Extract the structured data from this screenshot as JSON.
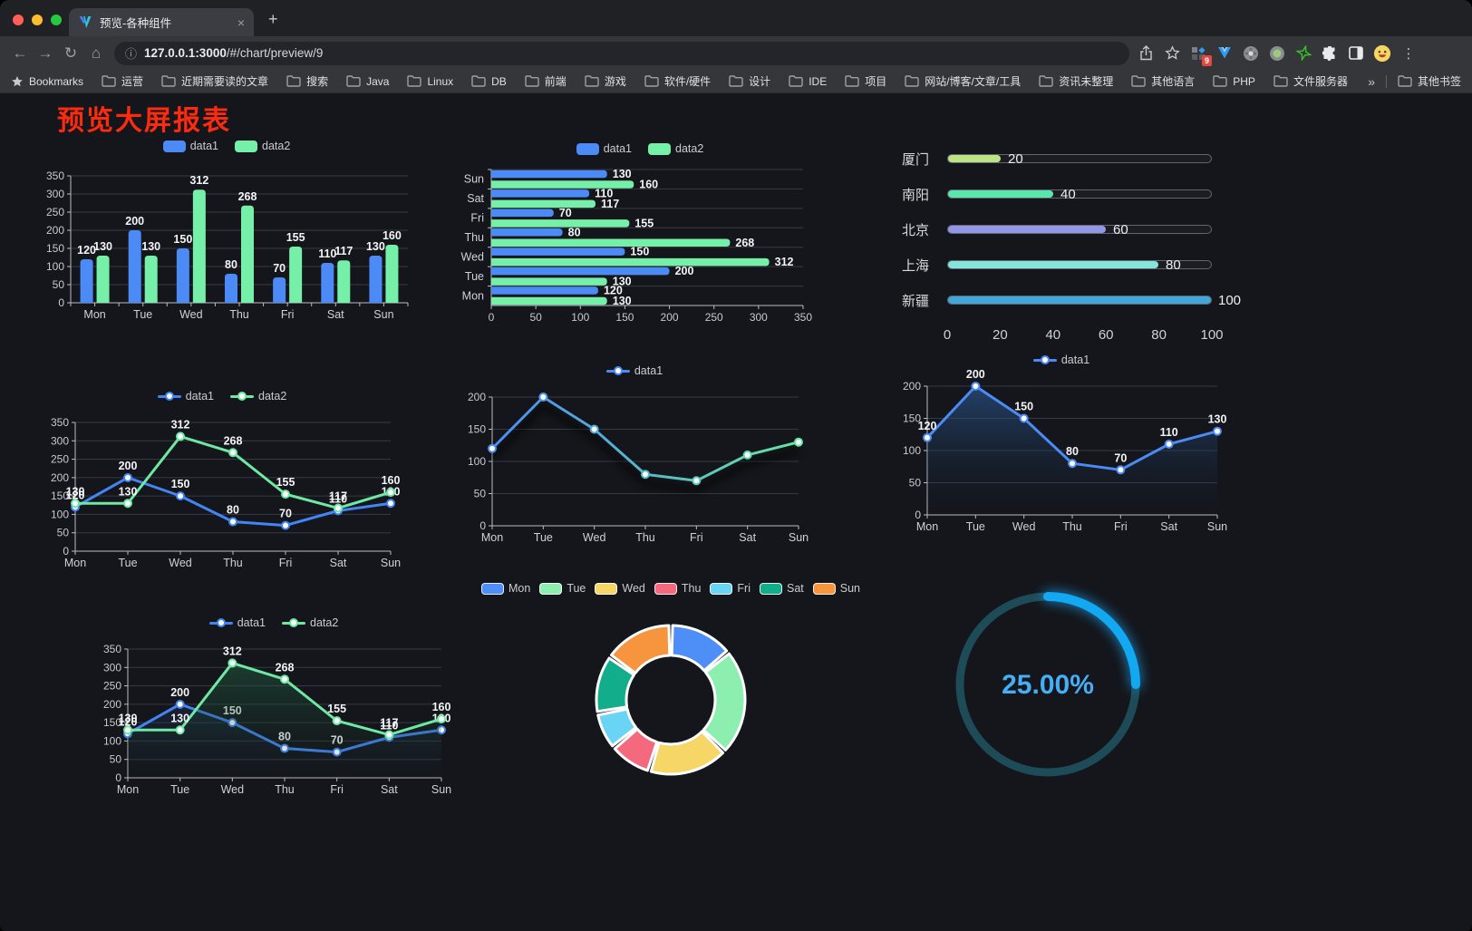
{
  "browser": {
    "tab_title": "预览-各种组件",
    "new_tab": "+",
    "close_tab": "×",
    "url_host": "127.0.0.1:3000",
    "url_path": "/#/chart/preview/9",
    "extension_badge": "9",
    "bookmarks_label": "Bookmarks",
    "bookmarks": [
      "运营",
      "近期需要读的文章",
      "搜索",
      "Java",
      "Linux",
      "DB",
      "前端",
      "游戏",
      "软件/硬件",
      "设计",
      "IDE",
      "项目",
      "网站/博客/文章/工具",
      "资讯未整理",
      "其他语言",
      "PHP",
      "文件服务器"
    ],
    "overflow_chevron": "»",
    "other_bookmarks": "其他书签"
  },
  "page": {
    "title": "预览大屏报表"
  },
  "chart_data": [
    {
      "id": "bar-grouped",
      "type": "bar",
      "legend_position": "top",
      "categories": [
        "Mon",
        "Tue",
        "Wed",
        "Thu",
        "Fri",
        "Sat",
        "Sun"
      ],
      "series": [
        {
          "name": "data1",
          "color": "#4C8BF5",
          "values": [
            120,
            200,
            150,
            80,
            70,
            110,
            130
          ]
        },
        {
          "name": "data2",
          "color": "#76EFA9",
          "values": [
            130,
            130,
            312,
            268,
            155,
            117,
            160
          ]
        }
      ],
      "ylim": [
        0,
        350
      ],
      "ytick_step": 50,
      "grid": true,
      "labels": true
    },
    {
      "id": "bar-horizontal",
      "type": "bar-horizontal",
      "legend_position": "top",
      "categories": [
        "Mon",
        "Tue",
        "Wed",
        "Thu",
        "Fri",
        "Sat",
        "Sun"
      ],
      "categories_displayed_top_to_bottom": [
        "Sun",
        "Sat",
        "Fri",
        "Thu",
        "Wed",
        "Tue",
        "Mon"
      ],
      "series": [
        {
          "name": "data1",
          "color": "#4C8BF5",
          "values": [
            120,
            200,
            150,
            80,
            70,
            110,
            130
          ]
        },
        {
          "name": "data2",
          "color": "#76EFA9",
          "values": [
            130,
            130,
            312,
            268,
            155,
            117,
            160
          ]
        }
      ],
      "xlim": [
        0,
        350
      ],
      "xtick_step": 50,
      "grid": true,
      "labels": true
    },
    {
      "id": "city-progress",
      "type": "progress",
      "rows": [
        {
          "label": "厦门",
          "value": 20,
          "color": "#BCE484"
        },
        {
          "label": "南阳",
          "value": 40,
          "color": "#5BE6AE"
        },
        {
          "label": "北京",
          "value": 60,
          "color": "#9197E6"
        },
        {
          "label": "上海",
          "value": 80,
          "color": "#85E5DC"
        },
        {
          "label": "新疆",
          "value": 100,
          "color": "#41A7DB"
        }
      ],
      "max": 100,
      "axis_ticks": [
        0,
        20,
        40,
        60,
        80,
        100
      ]
    },
    {
      "id": "line-two",
      "type": "line",
      "legend_position": "top",
      "categories": [
        "Mon",
        "Tue",
        "Wed",
        "Thu",
        "Fri",
        "Sat",
        "Sun"
      ],
      "series": [
        {
          "name": "data1",
          "color": "#4285F4",
          "values": [
            120,
            200,
            150,
            80,
            70,
            110,
            130
          ]
        },
        {
          "name": "data2",
          "color": "#6FE8A3",
          "values": [
            130,
            130,
            312,
            268,
            155,
            117,
            160
          ]
        }
      ],
      "ylim": [
        0,
        350
      ],
      "ytick_step": 50,
      "grid": true,
      "labels": true,
      "markers": true
    },
    {
      "id": "line-gradient",
      "type": "line",
      "legend_position": "top",
      "categories": [
        "Mon",
        "Tue",
        "Wed",
        "Thu",
        "Fri",
        "Sat",
        "Sun"
      ],
      "series": [
        {
          "name": "data1",
          "color": "#4C8BF5",
          "gradient": [
            "#4C8BF5",
            "#63E6A0"
          ],
          "shadow": true,
          "values": [
            120,
            200,
            150,
            80,
            70,
            110,
            130
          ]
        }
      ],
      "ylim": [
        0,
        200
      ],
      "ytick_step": 50,
      "grid": true,
      "labels": false,
      "markers": true
    },
    {
      "id": "line-area",
      "type": "line",
      "legend_position": "top",
      "categories": [
        "Mon",
        "Tue",
        "Wed",
        "Thu",
        "Fri",
        "Sat",
        "Sun"
      ],
      "series": [
        {
          "name": "data1",
          "color": "#4C8BF5",
          "area": [
            "rgba(46,96,160,0.6)",
            "rgba(20,30,50,0.03)"
          ],
          "values": [
            120,
            200,
            150,
            80,
            70,
            110,
            130
          ]
        }
      ],
      "ylim": [
        0,
        200
      ],
      "ytick_step": 50,
      "grid": true,
      "labels": true,
      "markers": true
    },
    {
      "id": "line-two-area",
      "type": "line",
      "legend_position": "top",
      "categories": [
        "Mon",
        "Tue",
        "Wed",
        "Thu",
        "Fri",
        "Sat",
        "Sun"
      ],
      "series": [
        {
          "name": "data1",
          "color": "#4285F4",
          "area": [
            "rgba(47,84,150,0.55)",
            "rgba(20,30,50,0.03)"
          ],
          "values": [
            120,
            200,
            150,
            80,
            70,
            110,
            130
          ]
        },
        {
          "name": "data2",
          "color": "#6FE8A3",
          "area": [
            "rgba(38,110,76,0.55)",
            "rgba(20,40,30,0.03)"
          ],
          "values": [
            130,
            130,
            312,
            268,
            155,
            117,
            160
          ]
        }
      ],
      "ylim": [
        0,
        350
      ],
      "ytick_step": 50,
      "grid": true,
      "labels": true,
      "markers": true
    },
    {
      "id": "donut-days",
      "type": "pie",
      "legend_position": "top",
      "items": [
        {
          "label": "Mon",
          "value": 120,
          "color": "#4E8EF7"
        },
        {
          "label": "Tue",
          "value": 200,
          "color": "#8CEFB0"
        },
        {
          "label": "Wed",
          "value": 150,
          "color": "#F5D666"
        },
        {
          "label": "Thu",
          "value": 80,
          "color": "#F5697F"
        },
        {
          "label": "Fri",
          "value": 70,
          "color": "#6AD4F5"
        },
        {
          "label": "Sat",
          "value": 110,
          "color": "#12AE8C"
        },
        {
          "label": "Sun",
          "value": 130,
          "color": "#F7953F"
        }
      ]
    },
    {
      "id": "gauge-percent",
      "type": "gauge",
      "value": 25,
      "label": "25.00%",
      "progress_color": "#12A9F2",
      "track_color": "#1d4b57",
      "text_color": "#45aef5"
    }
  ]
}
